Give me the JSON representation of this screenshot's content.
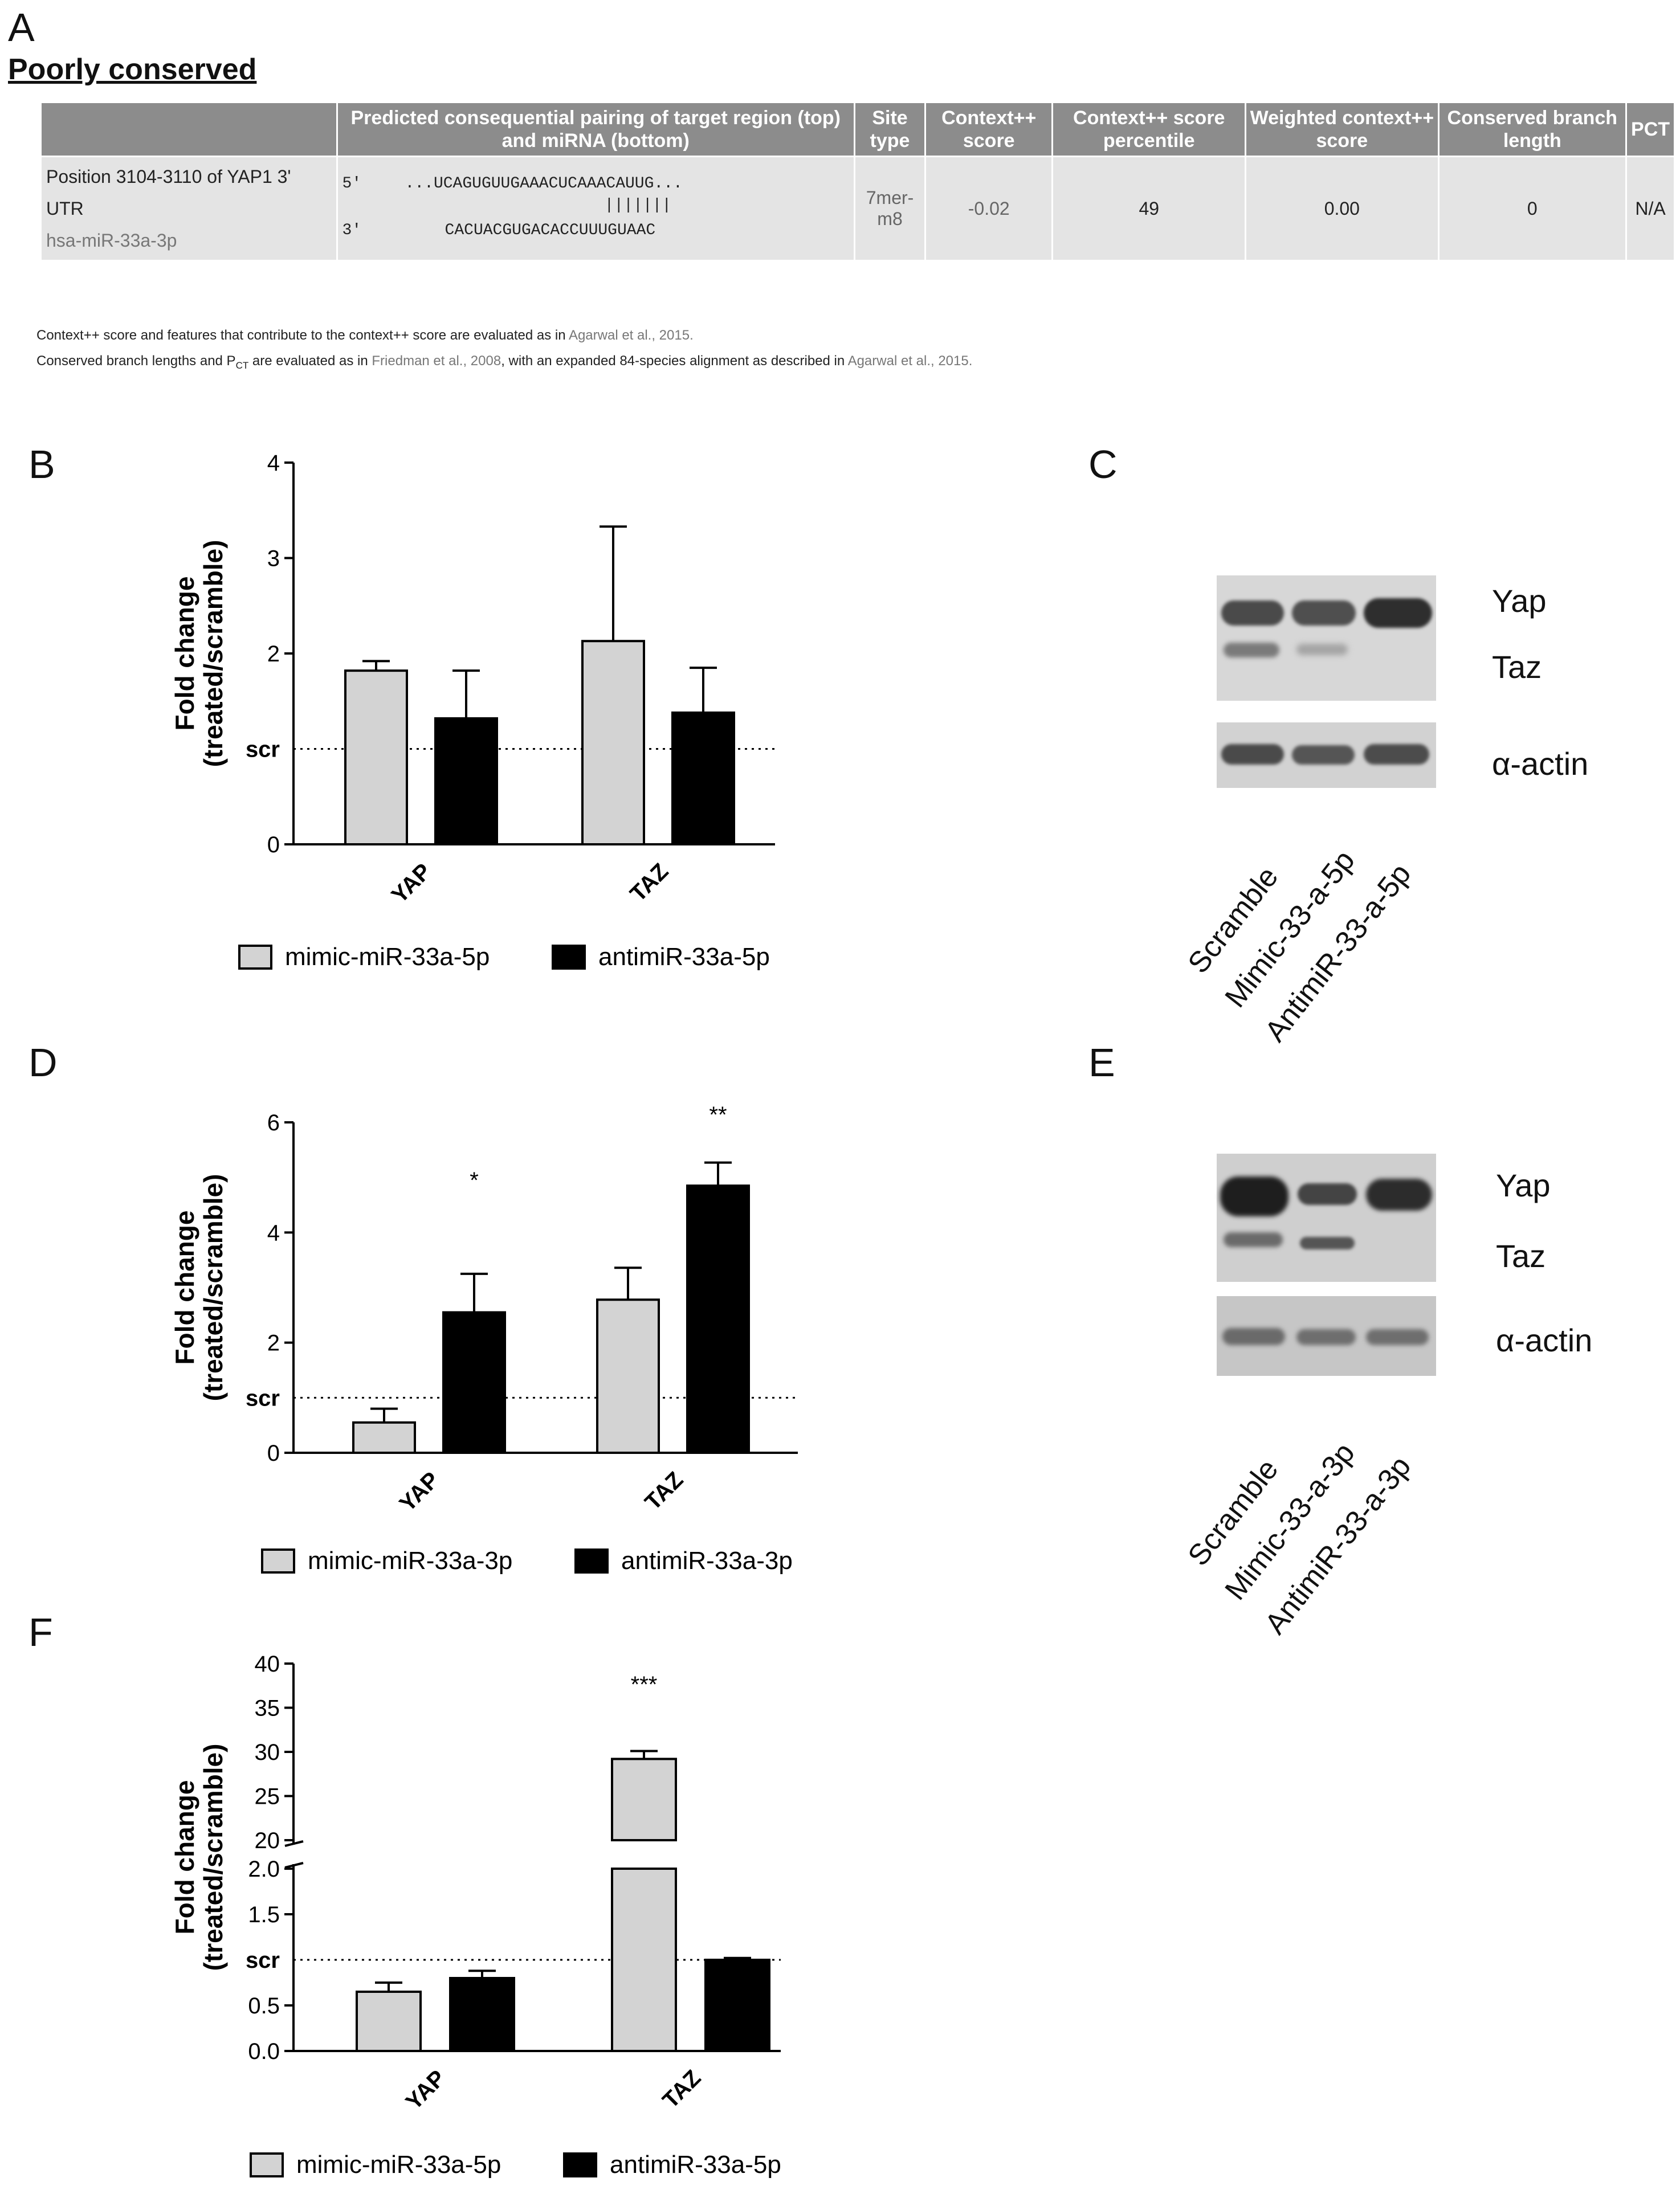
{
  "panels": {
    "a": "A",
    "b": "B",
    "c": "C",
    "d": "D",
    "e": "E",
    "f": "F"
  },
  "section_a": {
    "title": "Poorly conserved",
    "headers": {
      "site": "",
      "pairing": "Predicted consequential pairing of target region (top) and miRNA (bottom)",
      "site_type": "Site type",
      "context": "Context++ score",
      "percentile": "Context++ score percentile",
      "weighted": "Weighted context++ score",
      "branch": "Conserved branch length",
      "pct": "PCT"
    },
    "row": {
      "position": "Position 3104-3110 of YAP1 3' UTR",
      "mirna": "hsa-miR-33a-3p",
      "top_strand_label": "5'",
      "top_strand": "...UCAGUGUUGAAACUCAAACAUUG...",
      "pairing_marks": "|||||||",
      "bottom_strand_label": "3'",
      "bottom_strand": "CACUACGUGACACCUUUGUAAC",
      "site_type": "7mer-m8",
      "context": "-0.02",
      "percentile": "49",
      "weighted": "0.00",
      "branch": "0",
      "pct": "N/A"
    },
    "footnote1": "Context++ score and features that contribute to the context++ score are evaluated as in",
    "footnote1_ref": "Agarwal et al., 2015.",
    "footnote2_pre": "Conserved branch lengths and P",
    "footnote2_sub": "CT",
    "footnote2_mid": " are evaluated as in",
    "footnote2_ref1": "Friedman et al., 2008",
    "footnote2_post": ", with an expanded 84-species alignment as described in",
    "footnote2_ref2": "Agarwal et al., 2015."
  },
  "blots": {
    "c": {
      "bands": [
        "Yap",
        "Taz",
        "α-actin"
      ],
      "lanes": [
        "Scramble",
        "Mimic-33-a-5p",
        "AntimiR-33-a-5p"
      ]
    },
    "e": {
      "bands": [
        "Yap",
        "Taz",
        "α-actin"
      ],
      "lanes": [
        "Scramble",
        "Mimic-33-a-3p",
        "AntimiR-33-a-3p"
      ]
    }
  },
  "chart_data": [
    {
      "panel": "B",
      "type": "bar",
      "ylabel": "Fold change (treated/scramble)",
      "categories": [
        "YAP",
        "TAZ"
      ],
      "series": [
        {
          "name": "mimic-miR-33a-5p",
          "values": [
            1.82,
            2.13
          ],
          "errors": [
            0.1,
            1.2
          ],
          "color": "#d3d3d3"
        },
        {
          "name": "antimiR-33a-5p",
          "values": [
            1.32,
            1.38
          ],
          "errors": [
            0.5,
            0.47
          ],
          "color": "#000000"
        }
      ],
      "ylim": [
        0,
        4
      ],
      "yticks": [
        0,
        2,
        3,
        4
      ],
      "ref_line": {
        "value": 1,
        "label": "scr"
      },
      "significance": [
        "",
        "",
        "",
        ""
      ]
    },
    {
      "panel": "D",
      "type": "bar",
      "ylabel": "Fold change (treated/scramble)",
      "categories": [
        "YAP",
        "TAZ"
      ],
      "series": [
        {
          "name": "mimic-miR-33a-3p",
          "values": [
            0.55,
            2.78
          ],
          "errors": [
            0.25,
            0.58
          ],
          "color": "#d3d3d3"
        },
        {
          "name": "antimiR-33a-3p",
          "values": [
            2.55,
            4.85
          ],
          "errors": [
            0.7,
            0.42
          ],
          "color": "#000000"
        }
      ],
      "ylim": [
        0,
        6
      ],
      "yticks": [
        0,
        2,
        4,
        6
      ],
      "ref_line": {
        "value": 1,
        "label": "scr"
      },
      "significance": [
        "",
        "*",
        "",
        "**"
      ]
    },
    {
      "panel": "F",
      "type": "bar",
      "ylabel": "Fold change (treated/scramble)",
      "categories": [
        "YAP",
        "TAZ"
      ],
      "series": [
        {
          "name": "mimic-miR-33a-5p",
          "values": [
            0.65,
            29.2
          ],
          "errors": [
            0.1,
            0.9
          ],
          "color": "#d3d3d3"
        },
        {
          "name": "antimiR-33a-5p",
          "values": [
            0.8,
            1.0
          ],
          "errors": [
            0.08,
            0.02
          ],
          "color": "#000000"
        }
      ],
      "ylim": [
        0,
        40
      ],
      "axis_break": {
        "lower": [
          0,
          2.0
        ],
        "upper": [
          20,
          40
        ]
      },
      "yticks_lower": [
        "0.0",
        "0.5",
        "1.5",
        "2.0"
      ],
      "yticks_upper": [
        "20",
        "25",
        "30",
        "35",
        "40"
      ],
      "ref_line": {
        "value": 1,
        "label": "scr"
      },
      "significance": [
        "",
        "",
        "***",
        ""
      ]
    }
  ]
}
